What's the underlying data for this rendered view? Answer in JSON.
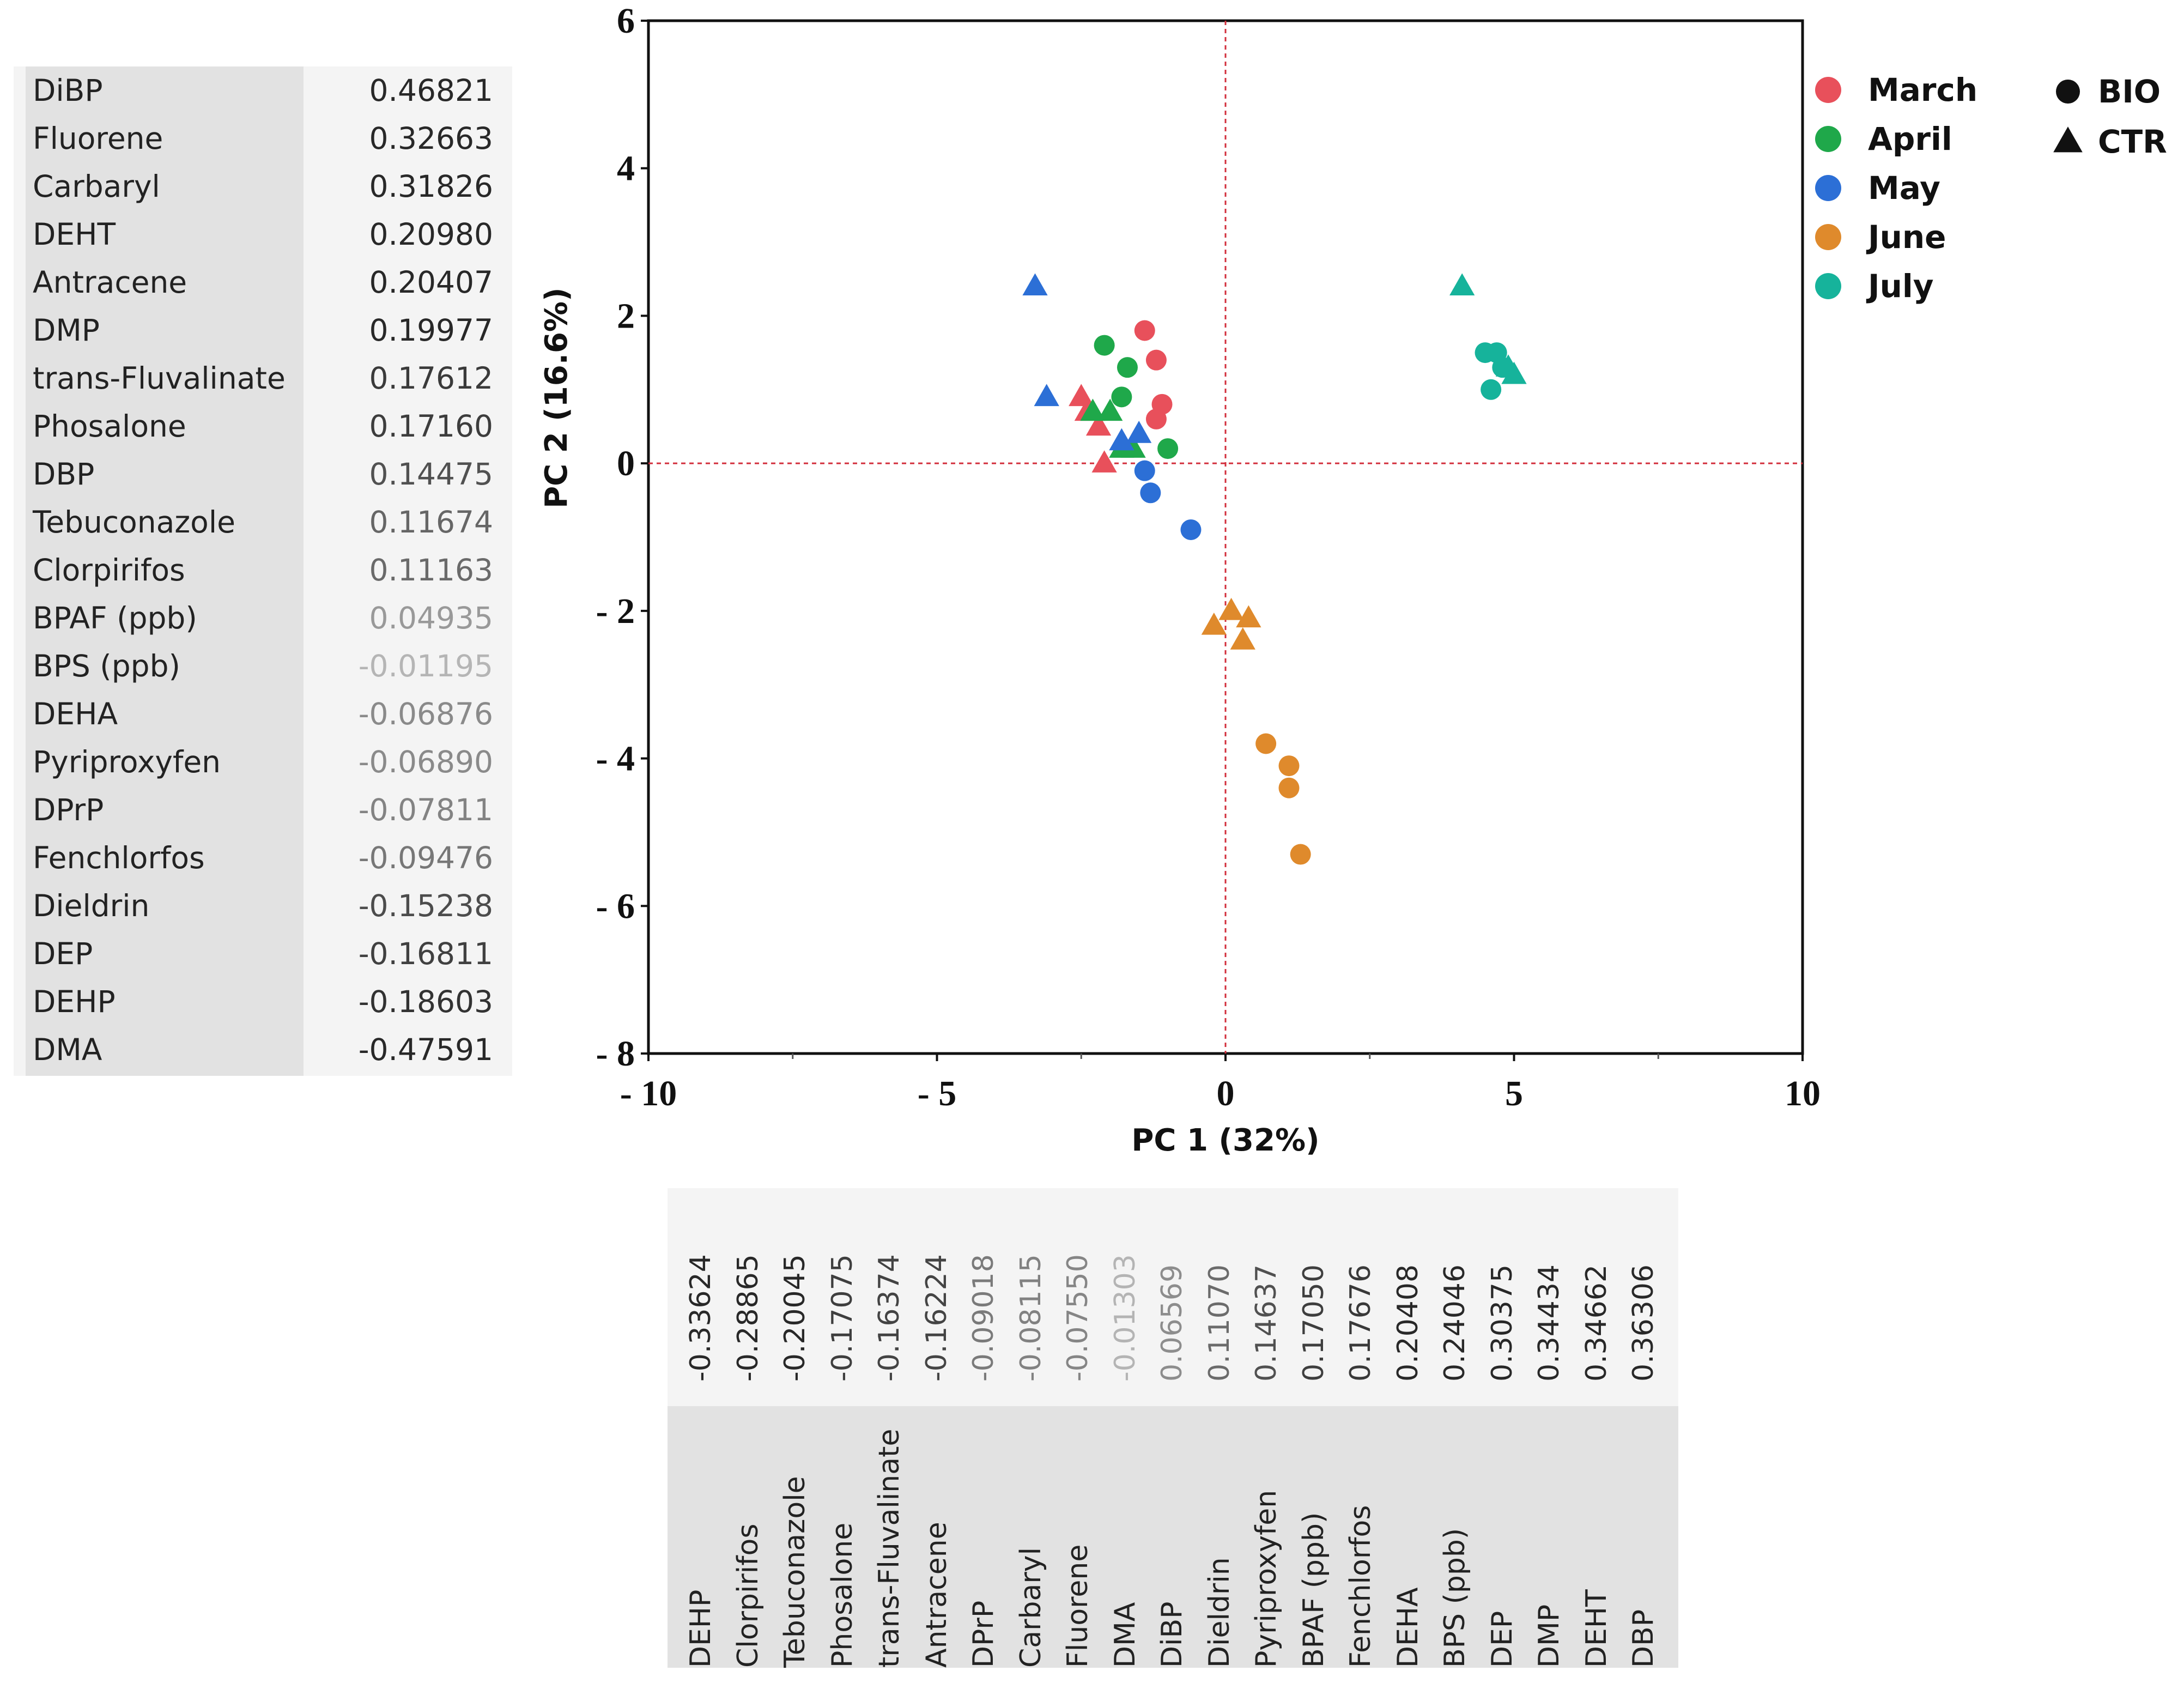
{
  "pc2_loadings": [
    {
      "name": "DiBP",
      "value": "0.46821"
    },
    {
      "name": "Fluorene",
      "value": "0.32663"
    },
    {
      "name": "Carbaryl",
      "value": "0.31826"
    },
    {
      "name": "DEHT",
      "value": "0.20980"
    },
    {
      "name": "Antracene",
      "value": "0.20407"
    },
    {
      "name": "DMP",
      "value": "0.19977"
    },
    {
      "name": "trans-Fluvalinate",
      "value": "0.17612"
    },
    {
      "name": "Phosalone",
      "value": "0.17160"
    },
    {
      "name": "DBP",
      "value": "0.14475"
    },
    {
      "name": "Tebuconazole",
      "value": "0.11674"
    },
    {
      "name": "Clorpirifos",
      "value": "0.11163"
    },
    {
      "name": "BPAF (ppb)",
      "value": "0.04935"
    },
    {
      "name": "BPS (ppb)",
      "value": "-0.01195"
    },
    {
      "name": "DEHA",
      "value": "-0.06876"
    },
    {
      "name": "Pyriproxyfen",
      "value": "-0.06890"
    },
    {
      "name": "DPrP",
      "value": "-0.07811"
    },
    {
      "name": "Fenchlorfos",
      "value": "-0.09476"
    },
    {
      "name": "Dieldrin",
      "value": "-0.15238"
    },
    {
      "name": "DEP",
      "value": "-0.16811"
    },
    {
      "name": "DEHP",
      "value": "-0.18603"
    },
    {
      "name": "DMA",
      "value": "-0.47591"
    }
  ],
  "pc1_loadings": [
    {
      "name": "DEHP",
      "value": "-0.33624"
    },
    {
      "name": "Clorpirifos",
      "value": "-0.28865"
    },
    {
      "name": "Tebuconazole",
      "value": "-0.20045"
    },
    {
      "name": "Phosalone",
      "value": "-0.17075"
    },
    {
      "name": "trans-Fluvalinate",
      "value": "-0.16374"
    },
    {
      "name": "Antracene",
      "value": "-0.16224"
    },
    {
      "name": "DPrP",
      "value": "-0.09018"
    },
    {
      "name": "Carbaryl",
      "value": "-0.08115"
    },
    {
      "name": "Fluorene",
      "value": "-0.07550"
    },
    {
      "name": "DMA",
      "value": "-0.01303"
    },
    {
      "name": "DiBP",
      "value": "0.06569"
    },
    {
      "name": "Dieldrin",
      "value": "0.11070"
    },
    {
      "name": "Pyriproxyfen",
      "value": "0.14637"
    },
    {
      "name": "BPAF (ppb)",
      "value": "0.17050"
    },
    {
      "name": "Fenchlorfos",
      "value": "0.17676"
    },
    {
      "name": "DEHA",
      "value": "0.20408"
    },
    {
      "name": "BPS (ppb)",
      "value": "0.24046"
    },
    {
      "name": "DEP",
      "value": "0.30375"
    },
    {
      "name": "DMP",
      "value": "0.34434"
    },
    {
      "name": "DEHT",
      "value": "0.34662"
    },
    {
      "name": "DBP",
      "value": "0.36306"
    }
  ],
  "chart_data": {
    "type": "scatter",
    "xlabel": "PC 1 (32%)",
    "ylabel": "PC 2  (16.6%)",
    "xlim": [
      -10,
      10
    ],
    "ylim": [
      -8,
      6
    ],
    "xticks": [
      "- 10",
      "- 5",
      "0",
      "5",
      "10"
    ],
    "yticks": [
      "6",
      "4",
      "2",
      "0",
      "- 2",
      "- 4",
      "- 6",
      "- 8"
    ],
    "reference_lines": {
      "x": 0,
      "y": 0,
      "color": "#d22f3c",
      "style": "dotted"
    },
    "grid": false,
    "legend_position": "right",
    "legend_months": [
      {
        "label": "March",
        "color": "#e8505b"
      },
      {
        "label": "April",
        "color": "#1fa84a"
      },
      {
        "label": "May",
        "color": "#2c6fd6"
      },
      {
        "label": "June",
        "color": "#df8a2c"
      },
      {
        "label": "July",
        "color": "#16b39b"
      }
    ],
    "legend_shapes": [
      {
        "label": "BIO",
        "shape": "circle"
      },
      {
        "label": "CTR",
        "shape": "triangle"
      }
    ],
    "series": [
      {
        "name": "March",
        "color": "#e8505b",
        "points": [
          {
            "x": -1.4,
            "y": 1.8,
            "shape": "circle"
          },
          {
            "x": -1.2,
            "y": 1.4,
            "shape": "circle"
          },
          {
            "x": -1.1,
            "y": 0.8,
            "shape": "circle"
          },
          {
            "x": -1.2,
            "y": 0.6,
            "shape": "circle"
          },
          {
            "x": -2.5,
            "y": 0.9,
            "shape": "triangle"
          },
          {
            "x": -2.4,
            "y": 0.7,
            "shape": "triangle"
          },
          {
            "x": -2.2,
            "y": 0.5,
            "shape": "triangle"
          },
          {
            "x": -2.1,
            "y": 0.0,
            "shape": "triangle"
          }
        ]
      },
      {
        "name": "April",
        "color": "#1fa84a",
        "points": [
          {
            "x": -2.1,
            "y": 1.6,
            "shape": "circle"
          },
          {
            "x": -1.7,
            "y": 1.3,
            "shape": "circle"
          },
          {
            "x": -1.8,
            "y": 0.9,
            "shape": "circle"
          },
          {
            "x": -1.0,
            "y": 0.2,
            "shape": "circle"
          },
          {
            "x": -2.3,
            "y": 0.7,
            "shape": "triangle"
          },
          {
            "x": -2.0,
            "y": 0.7,
            "shape": "triangle"
          },
          {
            "x": -1.8,
            "y": 0.2,
            "shape": "triangle"
          },
          {
            "x": -1.6,
            "y": 0.2,
            "shape": "triangle"
          }
        ]
      },
      {
        "name": "May",
        "color": "#2c6fd6",
        "points": [
          {
            "x": -1.4,
            "y": -0.1,
            "shape": "circle"
          },
          {
            "x": -1.3,
            "y": -0.4,
            "shape": "circle"
          },
          {
            "x": -0.6,
            "y": -0.9,
            "shape": "circle"
          },
          {
            "x": -3.3,
            "y": 2.4,
            "shape": "triangle"
          },
          {
            "x": -3.1,
            "y": 0.9,
            "shape": "triangle"
          },
          {
            "x": -1.8,
            "y": 0.3,
            "shape": "triangle"
          },
          {
            "x": -1.5,
            "y": 0.4,
            "shape": "triangle"
          }
        ]
      },
      {
        "name": "June",
        "color": "#df8a2c",
        "points": [
          {
            "x": 0.7,
            "y": -3.8,
            "shape": "circle"
          },
          {
            "x": 1.1,
            "y": -4.1,
            "shape": "circle"
          },
          {
            "x": 1.1,
            "y": -4.4,
            "shape": "circle"
          },
          {
            "x": 1.3,
            "y": -5.3,
            "shape": "circle"
          },
          {
            "x": -0.2,
            "y": -2.2,
            "shape": "triangle"
          },
          {
            "x": 0.1,
            "y": -2.0,
            "shape": "triangle"
          },
          {
            "x": 0.4,
            "y": -2.1,
            "shape": "triangle"
          },
          {
            "x": 0.3,
            "y": -2.4,
            "shape": "triangle"
          }
        ]
      },
      {
        "name": "July",
        "color": "#16b39b",
        "points": [
          {
            "x": 4.5,
            "y": 1.5,
            "shape": "circle"
          },
          {
            "x": 4.7,
            "y": 1.5,
            "shape": "circle"
          },
          {
            "x": 4.8,
            "y": 1.3,
            "shape": "circle"
          },
          {
            "x": 4.6,
            "y": 1.0,
            "shape": "circle"
          },
          {
            "x": 4.1,
            "y": 2.4,
            "shape": "triangle"
          },
          {
            "x": 4.9,
            "y": 1.3,
            "shape": "triangle"
          },
          {
            "x": 5.0,
            "y": 1.2,
            "shape": "triangle"
          }
        ]
      }
    ]
  }
}
